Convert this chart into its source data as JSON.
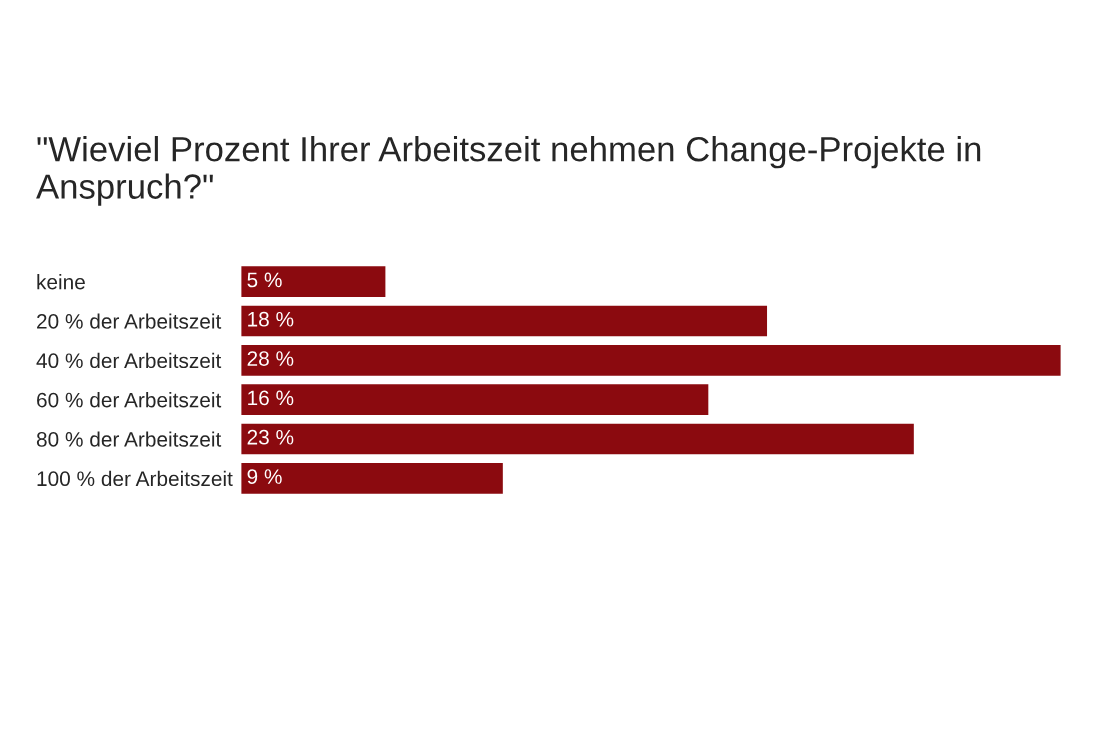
{
  "chart_data": {
    "type": "bar",
    "orientation": "horizontal",
    "title": "\"Wieviel Prozent Ihrer Arbeitszeit nehmen Change-Projekte in Anspruch?\"",
    "categories": [
      "keine",
      "20 % der Arbeitszeit",
      "40 % der Arbeitszeit",
      "60 % der Arbeitszeit",
      "80 % der Arbeitszeit",
      "100 % der Arbeitszeit"
    ],
    "values": [
      5,
      18,
      28,
      16,
      23,
      9
    ],
    "value_labels": [
      "5 %",
      "18 %",
      "28 %",
      "16 %",
      "23 %",
      "9 %"
    ],
    "color": "#8b0a0f",
    "grid": false,
    "legend": false
  }
}
